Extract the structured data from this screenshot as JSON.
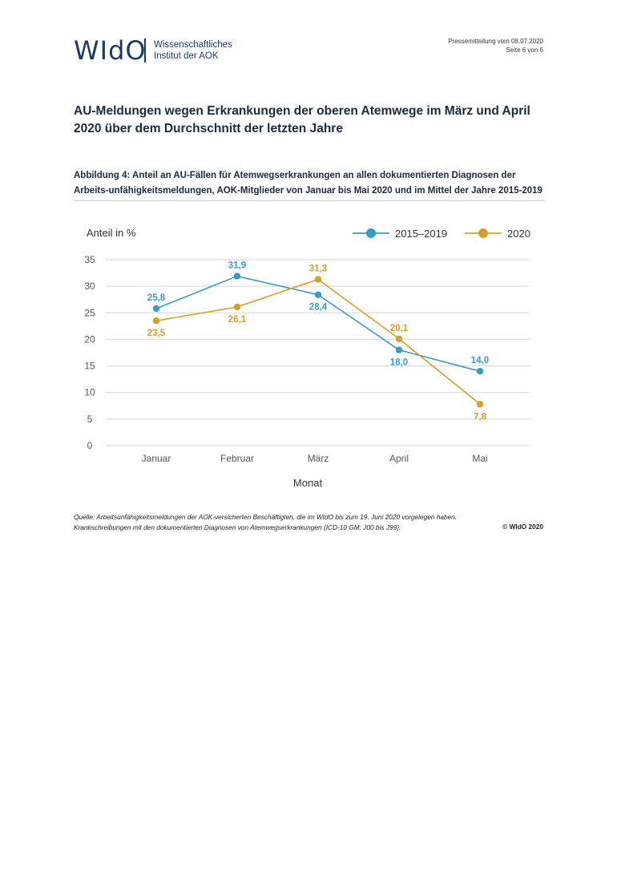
{
  "header": {
    "logo_mark": "WIdO",
    "logo_line1": "Wissenschaftliches",
    "logo_line2": "Institut der AOK",
    "press_release": "Pressemitteilung vom 08.07.2020",
    "page": "Seite 6 von 6"
  },
  "headline": "AU-Meldungen wegen Erkrankungen der oberen Atemwege im März und April 2020 über dem Durchschnitt der letzten Jahre",
  "caption": "Abbildung 4: Anteil an AU-Fällen für Atemwegserkrankungen an allen dokumentierten Diagnosen der Arbeits-unfähigkeitsmeldungen, AOK-Mitglieder von Januar bis Mai 2020 und im Mittel der Jahre 2015-2019",
  "chart_data": {
    "type": "line",
    "title": "",
    "ylabel": "Anteil in %",
    "xlabel": "Monat",
    "categories": [
      "Januar",
      "Februar",
      "März",
      "April",
      "Mai"
    ],
    "yticks": [
      0,
      5,
      10,
      15,
      20,
      25,
      30,
      35
    ],
    "ylim": [
      0,
      35
    ],
    "grid": true,
    "legend_position": "top-right",
    "series": [
      {
        "name": "2015–2019",
        "color": "#3b9bc7",
        "values": [
          25.8,
          31.9,
          28.4,
          18.0,
          14.0
        ],
        "labels": [
          "25,8",
          "31,9",
          "28,4",
          "18,0",
          "14,0"
        ],
        "label_side": [
          "above",
          "above",
          "below",
          "below",
          "above"
        ]
      },
      {
        "name": "2020",
        "color": "#d4a02a",
        "values": [
          23.5,
          26.1,
          31.3,
          20.1,
          7.8
        ],
        "labels": [
          "23,5",
          "26,1",
          "31,3",
          "20,1",
          "7,8"
        ],
        "label_side": [
          "below",
          "below",
          "above",
          "above",
          "below"
        ]
      }
    ]
  },
  "source": {
    "line1": "Quelle: Arbeitsunfähigkeitsmeldungen der AOK-versicherten Beschäftigten, die im WIdO bis zum 19. Juni 2020 vorgelegen haben.",
    "line2": "Krankschreibungen mit den dokumentierten Diagnosen von Atemwegserkrankungen (ICD-10 GM: J00 bis J99).",
    "copyright": "© WIdO 2020"
  }
}
